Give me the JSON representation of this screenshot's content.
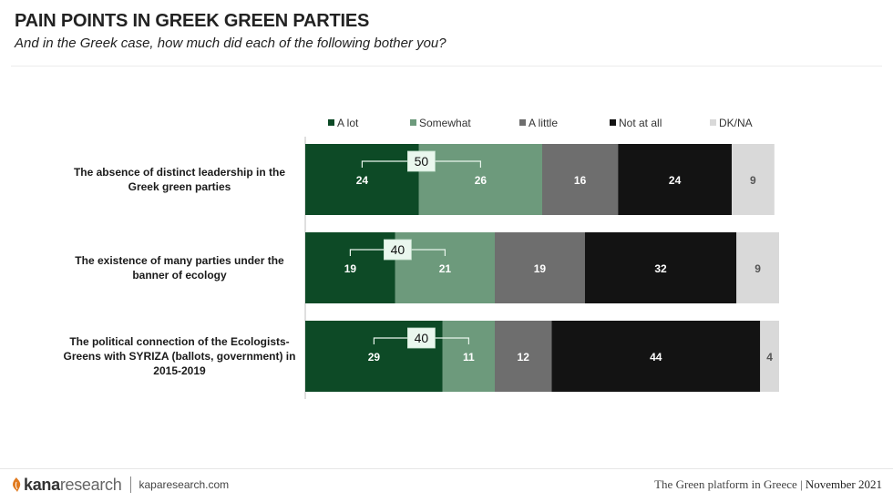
{
  "header": {
    "title": "PAIN POINTS IN GREEK GREEN PARTIES",
    "subtitle": "And in the Greek case, how much did each of the following bother you?"
  },
  "footer": {
    "brand_bold": "kana",
    "brand_light": "research",
    "site": "kaparesearch.com",
    "report_title": "The Green platform in Greece",
    "separator": "|",
    "date": "November 2021"
  },
  "colors": {
    "a_lot": "#0d4a26",
    "somewhat": "#6d9a7c",
    "a_little": "#6e6e6e",
    "not_at_all": "#131313",
    "dk_na": "#d9d9d9"
  },
  "chart_data": {
    "type": "bar",
    "orientation": "horizontal",
    "stacked": true,
    "legend_position": "top",
    "categories": [
      "The absence of distinct leadership in the Greek green parties",
      "The existence of many parties under the banner of ecology",
      "The political connection of the Ecologists-Greens with SYRIZA (ballots, government) in 2015-2019"
    ],
    "category_lines": [
      [
        "The absence of distinct leadership in the",
        "Greek green parties"
      ],
      [
        "The existence of many parties under the",
        "banner of ecology"
      ],
      [
        "The political connection of the Ecologists-",
        "Greens with SYRIZA (ballots, government) in",
        "2015-2019"
      ]
    ],
    "series": [
      {
        "name": "A lot",
        "values": [
          24,
          19,
          29
        ]
      },
      {
        "name": "Somewhat",
        "values": [
          26,
          21,
          11
        ]
      },
      {
        "name": "A little",
        "values": [
          16,
          19,
          12
        ]
      },
      {
        "name": "Not at all",
        "values": [
          24,
          32,
          44
        ]
      },
      {
        "name": "DK/NA",
        "values": [
          9,
          9,
          4
        ]
      }
    ],
    "bracket_totals": [
      50,
      40,
      40
    ],
    "xlim": [
      0,
      100
    ]
  }
}
